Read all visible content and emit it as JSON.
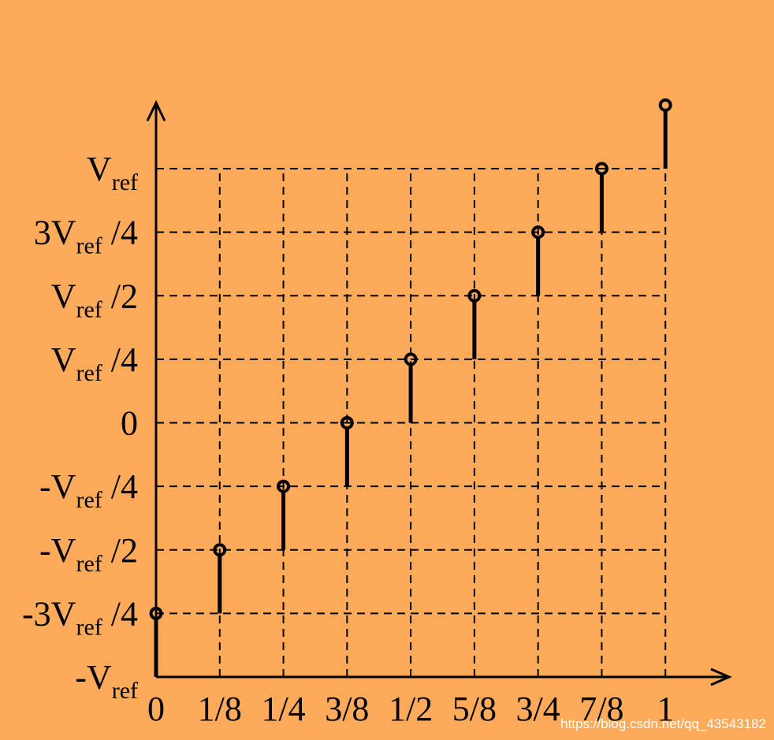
{
  "chart_data": {
    "type": "stem",
    "x": [
      0,
      0.125,
      0.25,
      0.375,
      0.5,
      0.625,
      0.75,
      0.875,
      1
    ],
    "values": [
      -0.75,
      -0.5,
      -0.25,
      0,
      0.25,
      0.5,
      0.75,
      1,
      1.25
    ],
    "color": "#000000",
    "xlim": [
      0,
      1.125
    ],
    "ylim": [
      -1,
      1.25
    ],
    "xticks": [
      0,
      {
        "value": 0.125,
        "label": "1/8"
      },
      {
        "value": 0.25,
        "label": "1/4"
      },
      {
        "value": 0.375,
        "label": "3/8"
      },
      {
        "value": 0.5,
        "label": "1/2"
      },
      {
        "value": 0.625,
        "label": "5/8"
      },
      {
        "value": 0.75,
        "label": "3/4"
      },
      {
        "value": 0.875,
        "label": "7/8"
      },
      1
    ],
    "yticks": [
      {
        "value": -1,
        "label": "-Vref"
      },
      {
        "value": -0.75,
        "label": "-3Vref /4"
      },
      {
        "value": -0.5,
        "label": "-Vref /2"
      },
      {
        "value": -0.25,
        "label": "-Vref /4"
      },
      0,
      {
        "value": 0.25,
        "label": "Vref /4"
      },
      {
        "value": 0.5,
        "label": "Vref /2"
      },
      {
        "value": 0.75,
        "label": "3Vref /4"
      },
      {
        "value": 1,
        "label": "Vref"
      }
    ],
    "grid": true,
    "watermark": "https://blog.csdn.net/qq_43543182"
  }
}
